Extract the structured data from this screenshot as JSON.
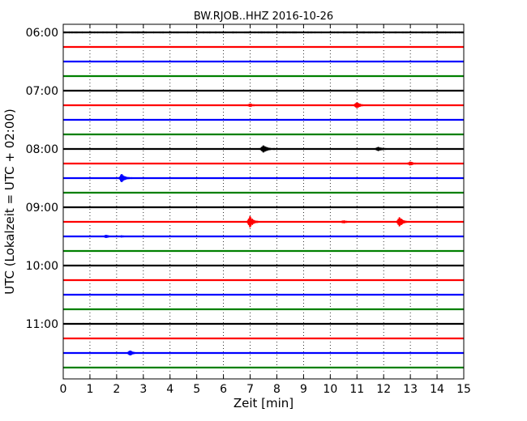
{
  "chart_data": {
    "type": "line",
    "title": "BW.RJOB..HHZ 2016-10-26",
    "xlabel": "Zeit  [min]",
    "ylabel": "UTC (Lokalzeit = UTC + 02:00)",
    "xlim": [
      0,
      15
    ],
    "x_ticks": [
      "0",
      "1",
      "2",
      "3",
      "4",
      "5",
      "6",
      "7",
      "8",
      "9",
      "10",
      "11",
      "12",
      "13",
      "14",
      "15"
    ],
    "y_ticks": [
      {
        "label": "06:00",
        "trace": 0
      },
      {
        "label": "07:00",
        "trace": 4
      },
      {
        "label": "08:00",
        "trace": 8
      },
      {
        "label": "09:00",
        "trace": 12
      },
      {
        "label": "10:00",
        "trace": 16
      },
      {
        "label": "11:00",
        "trace": 20
      }
    ],
    "grid": "vertical dotted",
    "trace_minutes": 15,
    "colors": [
      "#000000",
      "#ff0000",
      "#0000ff",
      "#008000"
    ],
    "traces": [
      {
        "start": "06:00",
        "color": "#000000",
        "noise": 0.9,
        "events": []
      },
      {
        "start": "06:15",
        "color": "#ff0000",
        "noise": 0.75,
        "events": []
      },
      {
        "start": "06:30",
        "color": "#0000ff",
        "noise": 0.7,
        "events": []
      },
      {
        "start": "06:45",
        "color": "#008000",
        "noise": 0.8,
        "events": []
      },
      {
        "start": "07:00",
        "color": "#000000",
        "noise": 0.65,
        "events": []
      },
      {
        "start": "07:15",
        "color": "#ff0000",
        "noise": 0.5,
        "events": [
          {
            "t": 7.0,
            "amp": 2.0
          },
          {
            "t": 11.0,
            "amp": 4.0
          }
        ]
      },
      {
        "start": "07:30",
        "color": "#0000ff",
        "noise": 0.6,
        "events": []
      },
      {
        "start": "07:45",
        "color": "#008000",
        "noise": 0.85,
        "events": []
      },
      {
        "start": "08:00",
        "color": "#000000",
        "noise": 0.8,
        "events": [
          {
            "t": 7.5,
            "amp": 4.5
          },
          {
            "t": 11.8,
            "amp": 2.0
          }
        ]
      },
      {
        "start": "08:15",
        "color": "#ff0000",
        "noise": 0.75,
        "events": [
          {
            "t": 13.0,
            "amp": 1.8
          }
        ]
      },
      {
        "start": "08:30",
        "color": "#0000ff",
        "noise": 0.75,
        "events": [
          {
            "t": 2.2,
            "amp": 5.0
          }
        ]
      },
      {
        "start": "08:45",
        "color": "#008000",
        "noise": 0.7,
        "events": []
      },
      {
        "start": "09:00",
        "color": "#000000",
        "noise": 0.6,
        "events": []
      },
      {
        "start": "09:15",
        "color": "#ff0000",
        "noise": 0.55,
        "events": [
          {
            "t": 7.0,
            "amp": 7.0
          },
          {
            "t": 10.5,
            "amp": 1.6
          },
          {
            "t": 12.6,
            "amp": 6.0
          }
        ]
      },
      {
        "start": "09:30",
        "color": "#0000ff",
        "noise": 0.5,
        "events": [
          {
            "t": 1.6,
            "amp": 1.8
          },
          {
            "t": 2.2,
            "amp": 1.0
          }
        ]
      },
      {
        "start": "09:45",
        "color": "#008000",
        "noise": 0.45,
        "events": []
      },
      {
        "start": "10:00",
        "color": "#000000",
        "noise": 0.45,
        "events": []
      },
      {
        "start": "10:15",
        "color": "#ff0000",
        "noise": 0.45,
        "events": []
      },
      {
        "start": "10:30",
        "color": "#0000ff",
        "noise": 0.45,
        "events": []
      },
      {
        "start": "10:45",
        "color": "#008000",
        "noise": 0.4,
        "events": []
      },
      {
        "start": "11:00",
        "color": "#000000",
        "noise": 0.45,
        "events": []
      },
      {
        "start": "11:15",
        "color": "#ff0000",
        "noise": 0.45,
        "events": []
      },
      {
        "start": "11:30",
        "color": "#0000ff",
        "noise": 0.45,
        "events": [
          {
            "t": 2.5,
            "amp": 3.2
          }
        ]
      },
      {
        "start": "11:45",
        "color": "#008000",
        "noise": 0.5,
        "events": []
      }
    ]
  }
}
